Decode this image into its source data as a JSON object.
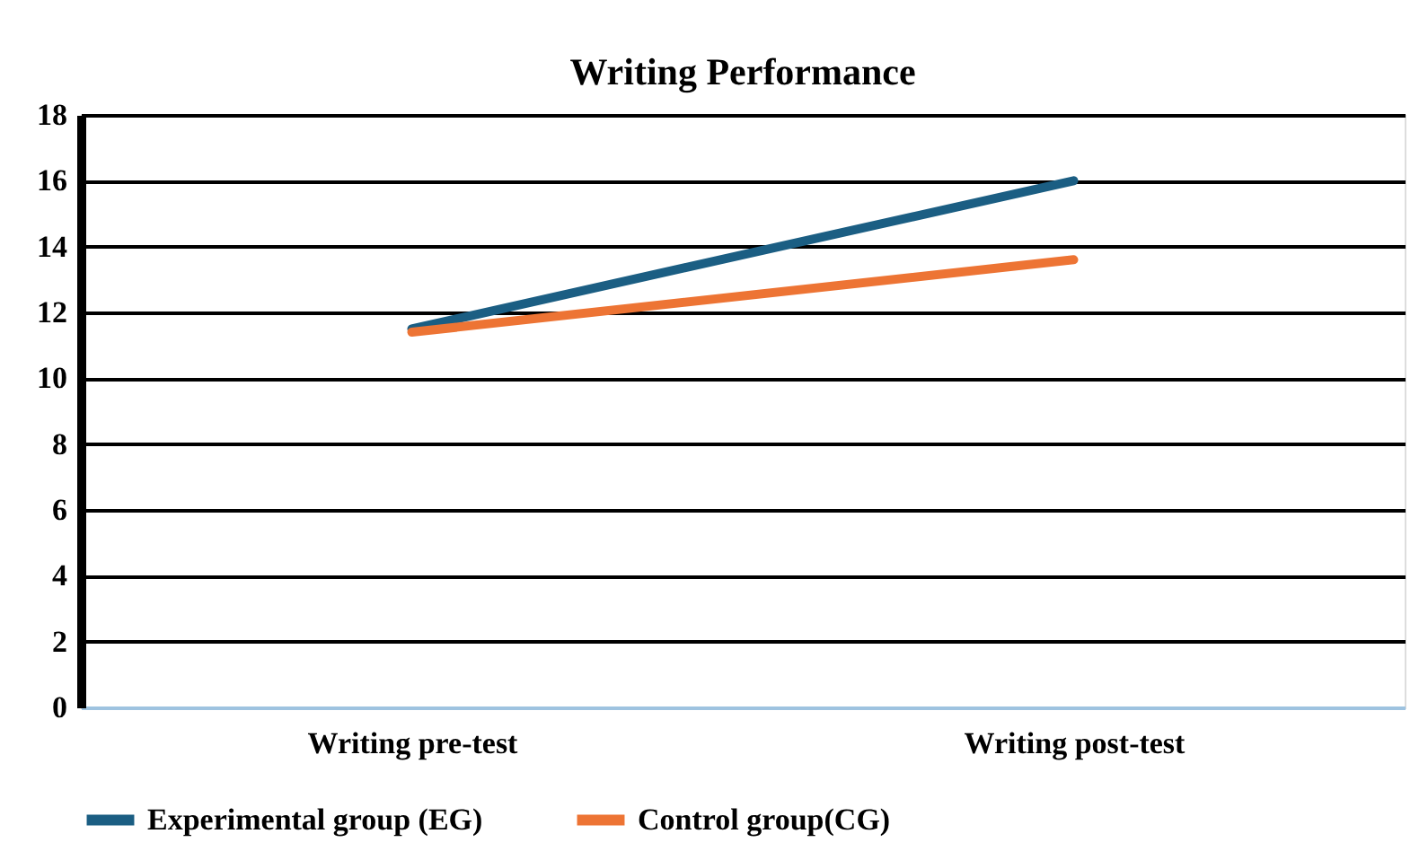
{
  "chart_data": {
    "type": "line",
    "title": "Writing Performance",
    "categories": [
      "Writing pre-test",
      "Writing post-test"
    ],
    "series": [
      {
        "name": "Experimental group (EG)",
        "color": "#1b5e83",
        "values": [
          11.5,
          16
        ]
      },
      {
        "name": "Control group(CG)",
        "color": "#ed7434",
        "values": [
          11.4,
          13.6
        ]
      }
    ],
    "ylim": [
      0,
      18
    ],
    "yticks": [
      0,
      2,
      4,
      6,
      8,
      10,
      12,
      14,
      16,
      18
    ],
    "grid": "y",
    "legend": "bottom",
    "marker": "none",
    "line_style": "solid"
  }
}
